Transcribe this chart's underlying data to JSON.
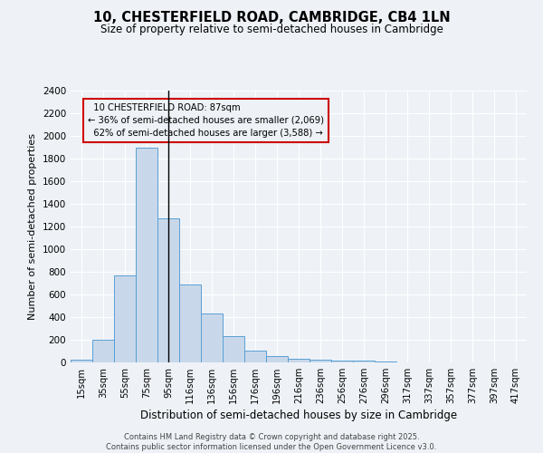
{
  "title": "10, CHESTERFIELD ROAD, CAMBRIDGE, CB4 1LN",
  "subtitle": "Size of property relative to semi-detached houses in Cambridge",
  "xlabel": "Distribution of semi-detached houses by size in Cambridge",
  "ylabel": "Number of semi-detached properties",
  "bar_color": "#c8d8ea",
  "bar_edge_color": "#5a9fd4",
  "annotation_line_color": "#000000",
  "box_edge_color": "#cc0000",
  "categories": [
    "15sqm",
    "35sqm",
    "55sqm",
    "75sqm",
    "95sqm",
    "116sqm",
    "136sqm",
    "156sqm",
    "176sqm",
    "196sqm",
    "216sqm",
    "236sqm",
    "256sqm",
    "276sqm",
    "296sqm",
    "317sqm",
    "337sqm",
    "357sqm",
    "377sqm",
    "397sqm",
    "417sqm"
  ],
  "values": [
    25,
    200,
    770,
    1900,
    1275,
    690,
    435,
    230,
    105,
    60,
    35,
    28,
    20,
    18,
    12,
    0,
    0,
    0,
    0,
    0,
    0
  ],
  "property_label": "10 CHESTERFIELD ROAD: 87sqm",
  "pct_smaller": 36,
  "pct_larger": 62,
  "n_smaller": 2069,
  "n_larger": 3588,
  "ylim": [
    0,
    2400
  ],
  "yticks": [
    0,
    200,
    400,
    600,
    800,
    1000,
    1200,
    1400,
    1600,
    1800,
    2000,
    2200,
    2400
  ],
  "bg_color": "#eef2f7",
  "grid_color": "#ffffff",
  "footer_line1": "Contains HM Land Registry data © Crown copyright and database right 2025.",
  "footer_line2": "Contains public sector information licensed under the Open Government Licence v3.0."
}
